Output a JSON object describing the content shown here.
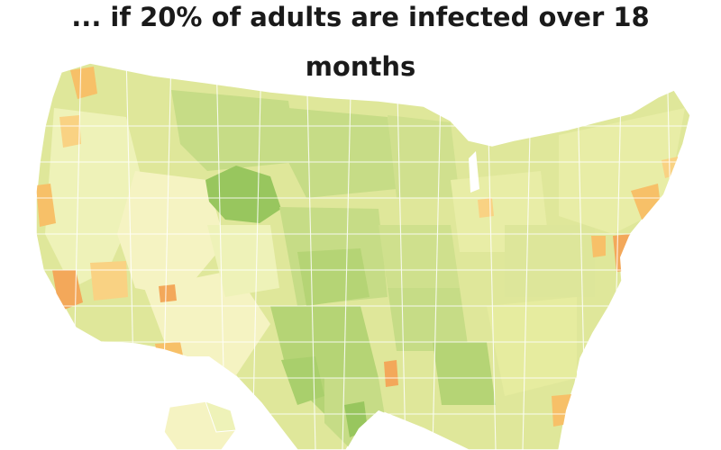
{
  "title": {
    "line1": "... if 20% of adults are infected over 18",
    "line2": "months"
  },
  "colors": {
    "background": "#ffffff",
    "land_base": "#dfe79a",
    "land_light": "#eef2b8",
    "land_pale": "#f5f3c2",
    "land_medium": "#c6dc86",
    "land_dark": "#a9cf6c",
    "land_darkest": "#98c65e",
    "hotspot_light": "#f9d283",
    "hotspot": "#f7c068",
    "hotspot_deep": "#f3a85a",
    "borders": "#ffffff"
  },
  "map": {
    "region": "United States",
    "unit": "hospital referral regions",
    "legend_shown": false
  }
}
